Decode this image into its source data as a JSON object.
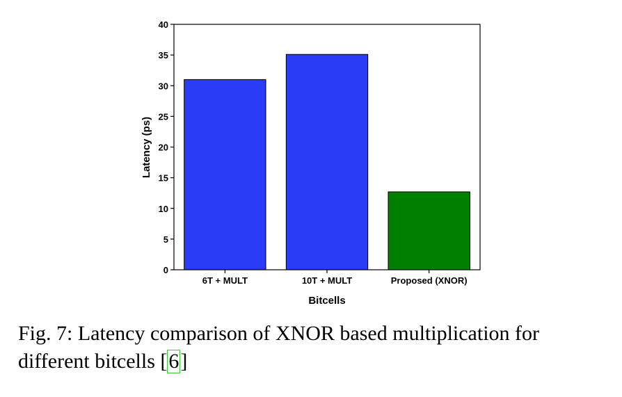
{
  "chart_data": {
    "type": "bar",
    "categories": [
      "6T + MULT",
      "10T + MULT",
      "Proposed (XNOR)"
    ],
    "values": [
      31,
      35.1,
      12.7
    ],
    "colors": [
      "#2a3cf5",
      "#2a3cf5",
      "#008000"
    ],
    "title": "",
    "xlabel": "Bitcells",
    "ylabel": "Latency (ps)",
    "ylim": [
      0,
      40
    ],
    "yticks": [
      0,
      5,
      10,
      15,
      20,
      25,
      30,
      35,
      40
    ],
    "ytick_labels": [
      "0",
      "5",
      "10",
      "15",
      "20",
      "25",
      "30",
      "35",
      "40"
    ],
    "grid": false,
    "legend": "none"
  },
  "caption": {
    "text_before": "Fig. 7: Latency comparison of XNOR based multiplication for different bitcells [",
    "ref": "6",
    "text_after": "]"
  }
}
